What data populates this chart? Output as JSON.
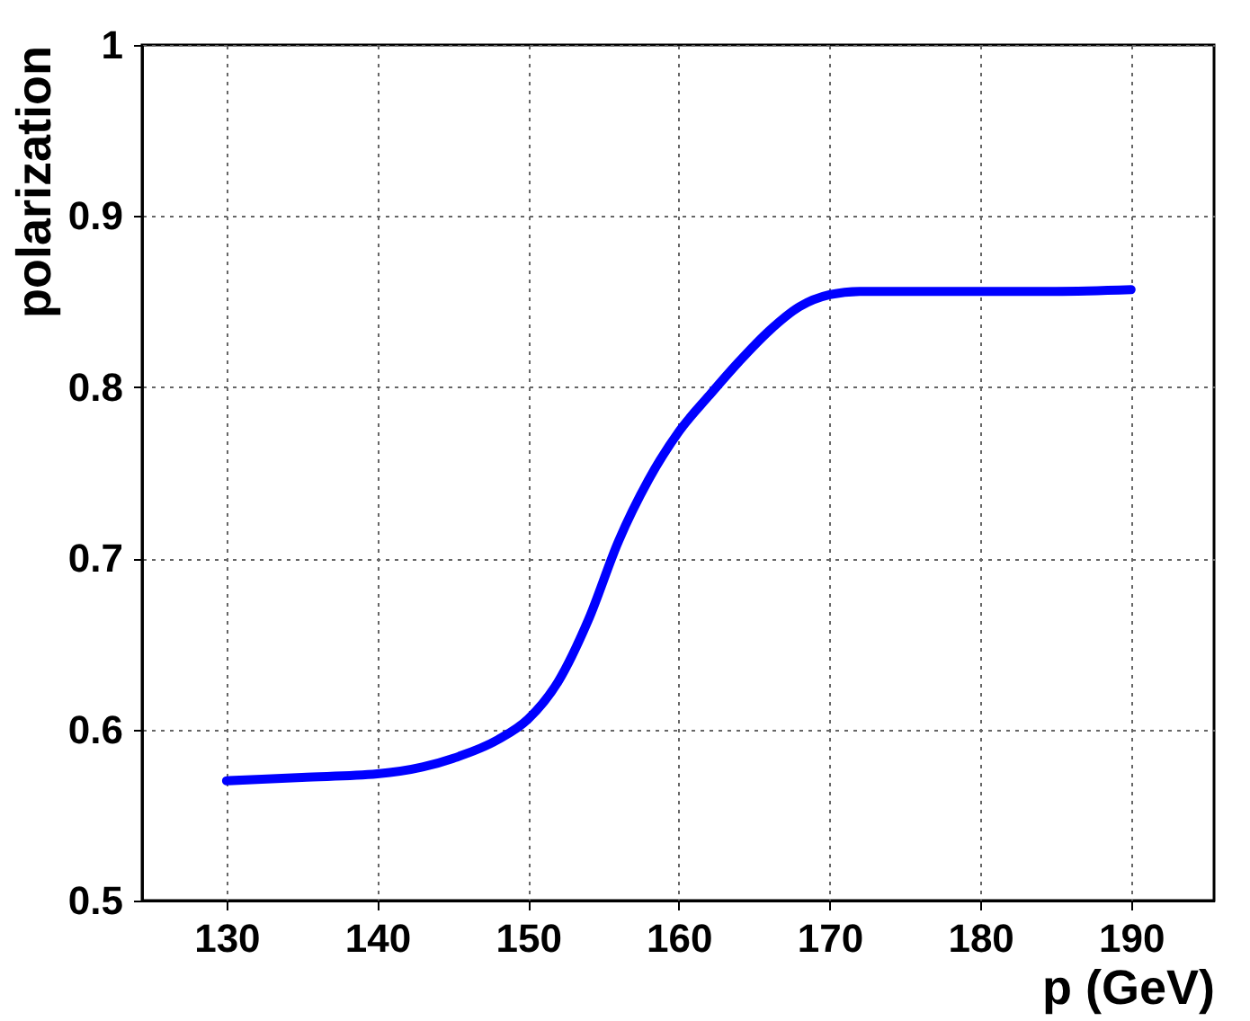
{
  "chart_data": {
    "type": "line",
    "xlabel": "p (GeV)",
    "ylabel": "polarization",
    "x": [
      130,
      135,
      140,
      143,
      145,
      148,
      150,
      152,
      154,
      156,
      158,
      160,
      162,
      164,
      166,
      168,
      170,
      172,
      175,
      180,
      185,
      190
    ],
    "series": [
      {
        "color": "#0000ff",
        "values": [
          0.57,
          0.572,
          0.574,
          0.578,
          0.583,
          0.594,
          0.606,
          0.628,
          0.664,
          0.71,
          0.746,
          0.774,
          0.795,
          0.815,
          0.833,
          0.847,
          0.854,
          0.856,
          0.856,
          0.856,
          0.856,
          0.857
        ]
      }
    ],
    "xlim": [
      124.4,
      195.5
    ],
    "xticks": [
      130,
      140,
      150,
      160,
      170,
      180,
      190
    ],
    "ylim": [
      0.5,
      1
    ],
    "yticks": [
      0.5,
      0.6,
      0.7,
      0.8,
      0.9,
      1
    ],
    "grid": true,
    "line_style": "solid",
    "marker": "none"
  }
}
